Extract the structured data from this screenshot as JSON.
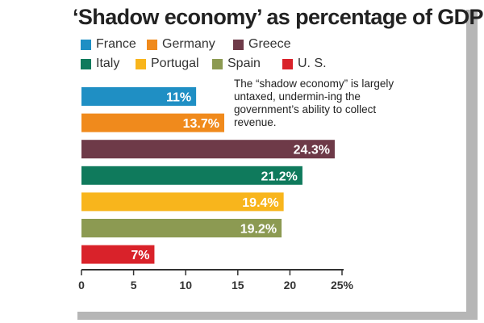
{
  "chart_data": {
    "type": "bar",
    "orientation": "horizontal",
    "title": "‘Shadow economy’ as percentage of GDP",
    "note": "The “shadow economy” is largely untaxed, undermin-ing the government’s ability to collect revenue.",
    "categories": [
      "France",
      "Germany",
      "Greece",
      "Italy",
      "Portugal",
      "Spain",
      "U. S."
    ],
    "values": [
      11,
      13.7,
      24.3,
      21.2,
      19.4,
      19.2,
      7
    ],
    "value_labels": [
      "11%",
      "13.7%",
      "24.3%",
      "21.2%",
      "19.4%",
      "19.2%",
      "7%"
    ],
    "colors": [
      "#1f8fc4",
      "#f08a1c",
      "#6e3a48",
      "#0f7a5c",
      "#f8b51c",
      "#8c9a52",
      "#d9222a"
    ],
    "xlim": [
      0,
      25
    ],
    "x_ticks": [
      "0",
      "5",
      "10",
      "15",
      "20",
      "25%"
    ],
    "legend_placement": "top",
    "grid": false
  }
}
